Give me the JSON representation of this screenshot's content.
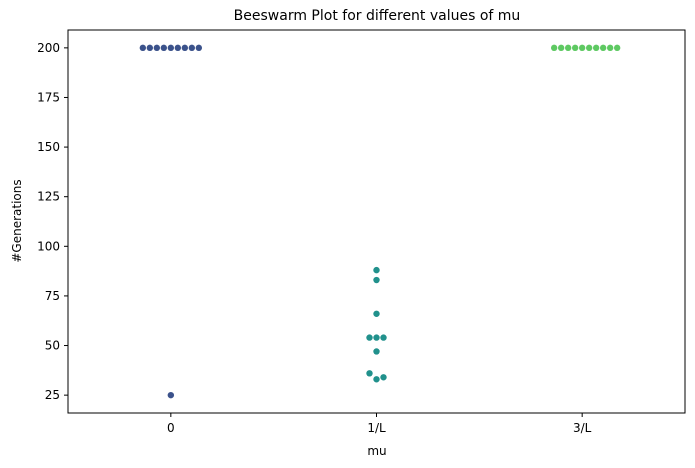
{
  "chart_data": {
    "type": "scatter",
    "subtype": "beeswarm",
    "title": "Beeswarm Plot for different values of mu",
    "xlabel": "mu",
    "ylabel": "#Generations",
    "categories": [
      "0",
      "1/L",
      "3/L"
    ],
    "ylim": [
      16,
      209
    ],
    "yticks": [
      25,
      50,
      75,
      100,
      125,
      150,
      175,
      200
    ],
    "grid": false,
    "legend": "none",
    "series": [
      {
        "category": "0",
        "color": "#3b528b",
        "values": [
          200,
          200,
          200,
          200,
          200,
          200,
          200,
          200,
          200,
          25
        ]
      },
      {
        "category": "1/L",
        "color": "#21918c",
        "values": [
          88,
          83,
          66,
          54,
          54,
          54,
          47,
          36,
          34,
          33
        ]
      },
      {
        "category": "3/L",
        "color": "#5ec962",
        "values": [
          200,
          200,
          200,
          200,
          200,
          200,
          200,
          200,
          200,
          200
        ]
      }
    ]
  }
}
